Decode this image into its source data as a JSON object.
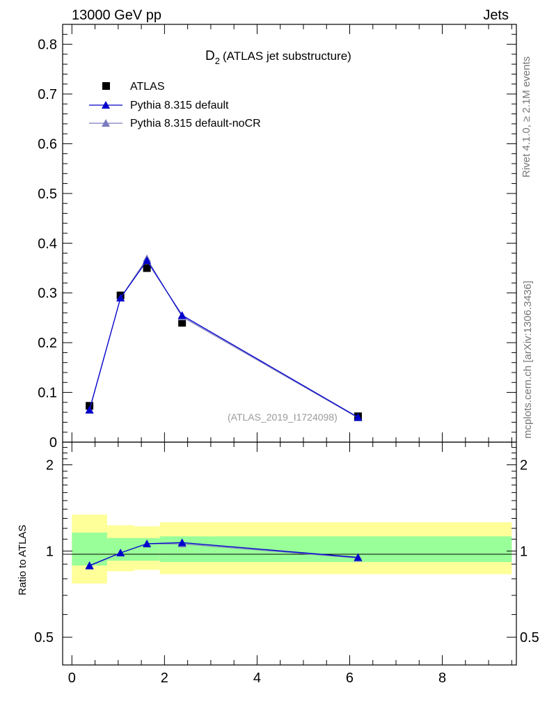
{
  "header": {
    "left": "13000 GeV pp",
    "right": "Jets"
  },
  "side_labels": {
    "rivet": "Rivet 4.1.0, ≥ 2.1M events",
    "mcplots": "mcplots.cern.ch [arXiv:1306.3436]"
  },
  "colors": {
    "atlas": "#000000",
    "pythia_default": "#0000cc",
    "pythia_nocr": "#7b7bbf",
    "band_inner": "#99ff99",
    "band_outer": "#ffff99"
  },
  "chart_data": [
    {
      "type": "scatter",
      "panel": "main",
      "title_main": "D",
      "title_sub": "2",
      "title_rest": "(ATLAS jet substructure)",
      "watermark": "(ATLAS_2019_I1724098)",
      "xlim": [
        -0.2,
        9.6
      ],
      "ylim": [
        0,
        0.84
      ],
      "yticks": [
        0.1,
        0.2,
        0.3,
        0.4,
        0.5,
        0.6,
        0.7,
        0.8
      ],
      "ytick_labels": [
        "0.1",
        "0.2",
        "0.3",
        "0.4",
        "0.5",
        "0.6",
        "0.7",
        "0.8"
      ],
      "y_zero_label": "0",
      "legend": [
        "ATLAS",
        "Pythia 8.315 default",
        "Pythia 8.315 default-noCR"
      ],
      "series": [
        {
          "name": "ATLAS",
          "marker": "square",
          "x": [
            0.38,
            1.05,
            1.62,
            2.38,
            6.18
          ],
          "y": [
            0.073,
            0.295,
            0.35,
            0.24,
            0.052
          ]
        },
        {
          "name": "Pythia 8.315 default",
          "marker": "triangle",
          "x": [
            0.38,
            1.05,
            1.62,
            2.38,
            6.18
          ],
          "y": [
            0.065,
            0.29,
            0.365,
            0.255,
            0.05
          ]
        },
        {
          "name": "Pythia 8.315 default-noCR",
          "marker": "triangle",
          "x": [
            0.38,
            1.05,
            1.62,
            2.38,
            6.18
          ],
          "y": [
            0.064,
            0.29,
            0.369,
            0.252,
            0.049
          ]
        }
      ]
    },
    {
      "type": "line",
      "panel": "ratio",
      "ylabel": "Ratio to ATLAS",
      "xlim": [
        -0.2,
        9.6
      ],
      "ylim": [
        0.4,
        2.4
      ],
      "xticks": [
        0,
        2,
        4,
        6,
        8
      ],
      "xtick_labels": [
        "0",
        "2",
        "4",
        "6",
        "8"
      ],
      "yticks": [
        0.5,
        1,
        2
      ],
      "ytick_labels": [
        "0.5",
        "1",
        "2"
      ],
      "bands": [
        {
          "x0": 0.0,
          "x1": 0.76,
          "inner": [
            0.89,
            1.16
          ],
          "outer": [
            0.77,
            1.34
          ]
        },
        {
          "x0": 0.76,
          "x1": 1.34,
          "inner": [
            0.925,
            1.11
          ],
          "outer": [
            0.85,
            1.23
          ]
        },
        {
          "x0": 1.34,
          "x1": 1.9,
          "inner": [
            0.925,
            1.11
          ],
          "outer": [
            0.86,
            1.22
          ]
        },
        {
          "x0": 1.9,
          "x1": 9.5,
          "inner": [
            0.915,
            1.125
          ],
          "outer": [
            0.83,
            1.26
          ]
        }
      ],
      "series": [
        {
          "name": "Pythia 8.315 default",
          "x": [
            0.38,
            1.05,
            1.62,
            2.38,
            6.18
          ],
          "y": [
            0.89,
            0.985,
            1.06,
            1.07,
            0.95
          ]
        },
        {
          "name": "Pythia 8.315 default-noCR",
          "x": [
            0.38,
            1.05,
            1.62,
            2.38,
            6.18
          ],
          "y": [
            0.885,
            0.985,
            1.06,
            1.06,
            0.945
          ]
        }
      ]
    }
  ]
}
